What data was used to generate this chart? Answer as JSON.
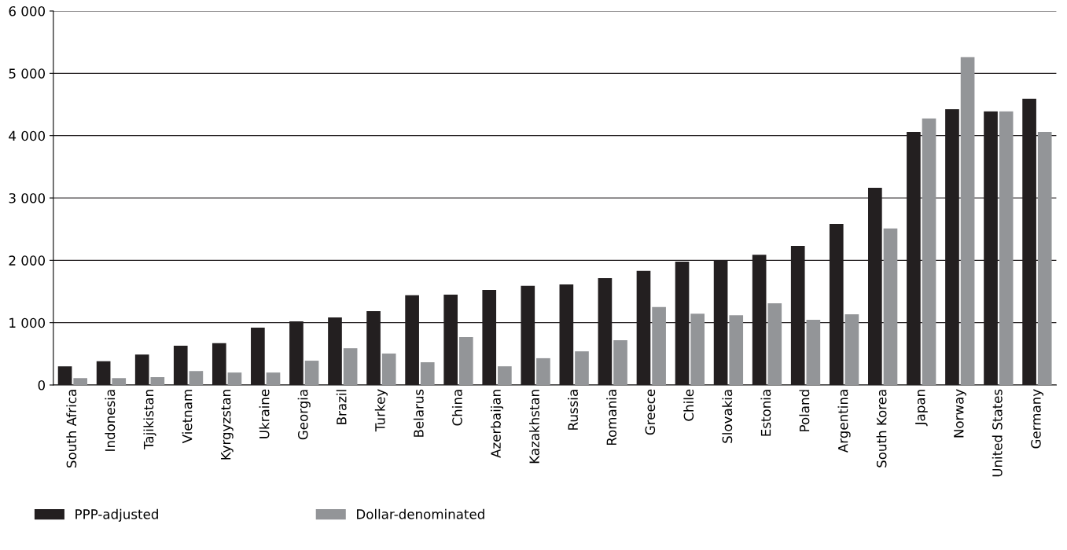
{
  "chart_data": {
    "type": "bar",
    "categories": [
      "South Africa",
      "Indonesia",
      "Tajikistan",
      "Vietnam",
      "Kyrgyzstan",
      "Ukraine",
      "Georgia",
      "Brazil",
      "Turkey",
      "Belarus",
      "China",
      "Azerbaijan",
      "Kazakhstan",
      "Russia",
      "Romania",
      "Greece",
      "Chile",
      "Slovakia",
      "Estonia",
      "Poland",
      "Argentina",
      "South Korea",
      "Japan",
      "Norway",
      "United States",
      "Germany"
    ],
    "series": [
      {
        "name": "PPP-adjusted",
        "color": "#231f20",
        "values": [
          300,
          380,
          490,
          630,
          670,
          920,
          1020,
          1085,
          1185,
          1440,
          1450,
          1525,
          1590,
          1615,
          1715,
          1830,
          1980,
          1995,
          2090,
          2230,
          2585,
          3165,
          4060,
          4425,
          4390,
          4590
        ]
      },
      {
        "name": "Dollar-denominated",
        "color": "#939598",
        "values": [
          110,
          110,
          125,
          225,
          200,
          200,
          390,
          590,
          505,
          365,
          770,
          300,
          430,
          540,
          720,
          1250,
          1145,
          1120,
          1310,
          1045,
          1135,
          2510,
          4275,
          5260,
          4390,
          4060
        ]
      }
    ],
    "ylim": [
      0,
      6000
    ],
    "yticks": [
      0,
      {
        "value": 1000,
        "label": "1 000"
      },
      {
        "value": 2000,
        "label": "2 000"
      },
      {
        "value": 3000,
        "label": "3 000"
      },
      {
        "value": 4000,
        "label": "4 000"
      },
      {
        "value": 5000,
        "label": "5 000"
      },
      {
        "value": 6000,
        "label": "6 000"
      }
    ],
    "grid": "y",
    "legend": "bottom left"
  }
}
